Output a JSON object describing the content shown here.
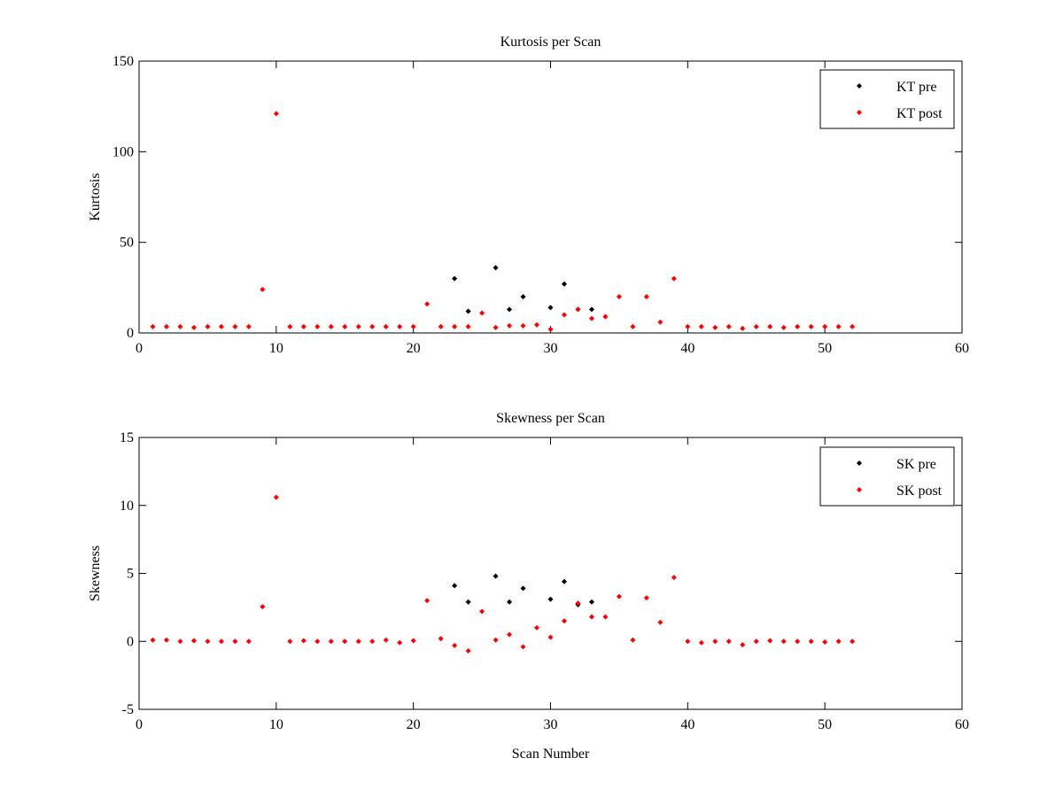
{
  "chart_data": [
    {
      "type": "scatter",
      "title": "Kurtosis per Scan",
      "xlabel": "",
      "ylabel": "Kurtosis",
      "xlim": [
        0,
        60
      ],
      "ylim": [
        0,
        150
      ],
      "xticks": [
        0,
        10,
        20,
        30,
        40,
        50,
        60
      ],
      "yticks": [
        0,
        50,
        100,
        150
      ],
      "grid": false,
      "legend_position": "top-right",
      "series": [
        {
          "name": "KT pre",
          "color": "#000000",
          "x": [
            23,
            24,
            26,
            27,
            28,
            30,
            31,
            32,
            33
          ],
          "y": [
            30,
            12,
            36,
            13,
            20,
            14,
            27,
            13,
            13
          ]
        },
        {
          "name": "KT post",
          "color": "#ff0000",
          "x": [
            1,
            2,
            3,
            4,
            5,
            6,
            7,
            8,
            9,
            10,
            11,
            12,
            13,
            14,
            15,
            16,
            17,
            18,
            19,
            20,
            21,
            22,
            23,
            24,
            25,
            26,
            27,
            28,
            29,
            30,
            31,
            32,
            33,
            34,
            35,
            36,
            37,
            38,
            39,
            40,
            41,
            42,
            43,
            44,
            45,
            46,
            47,
            48,
            49,
            50,
            51,
            52
          ],
          "y": [
            3.5,
            3.5,
            3.5,
            3,
            3.5,
            3.5,
            3.5,
            3.5,
            24,
            121,
            3.5,
            3.5,
            3.5,
            3.5,
            3.5,
            3.5,
            3.5,
            3.5,
            3.5,
            3.5,
            16,
            3.5,
            3.5,
            3.5,
            11,
            3,
            4,
            4,
            4.5,
            2,
            10,
            13,
            8,
            9,
            20,
            3.5,
            20,
            6,
            30,
            3.5,
            3.5,
            3,
            3.5,
            2.5,
            3.5,
            3.5,
            3,
            3.5,
            3.5,
            3.5,
            3.5,
            3.5
          ]
        }
      ]
    },
    {
      "type": "scatter",
      "title": "Skewness per Scan",
      "xlabel": "Scan Number",
      "ylabel": "Skewness",
      "xlim": [
        0,
        60
      ],
      "ylim": [
        -5,
        15
      ],
      "xticks": [
        0,
        10,
        20,
        30,
        40,
        50,
        60
      ],
      "yticks": [
        -5,
        0,
        5,
        10,
        15
      ],
      "grid": false,
      "legend_position": "top-right",
      "series": [
        {
          "name": "SK pre",
          "color": "#000000",
          "x": [
            23,
            24,
            26,
            27,
            28,
            30,
            31,
            32,
            33
          ],
          "y": [
            4.1,
            2.9,
            4.8,
            2.9,
            3.9,
            3.1,
            4.4,
            2.7,
            2.9
          ]
        },
        {
          "name": "SK post",
          "color": "#ff0000",
          "x": [
            1,
            2,
            3,
            4,
            5,
            6,
            7,
            8,
            9,
            10,
            11,
            12,
            13,
            14,
            15,
            16,
            17,
            18,
            19,
            20,
            21,
            22,
            23,
            24,
            25,
            26,
            27,
            28,
            29,
            30,
            31,
            32,
            33,
            34,
            35,
            36,
            37,
            38,
            39,
            40,
            41,
            42,
            43,
            44,
            45,
            46,
            47,
            48,
            49,
            50,
            51,
            52
          ],
          "y": [
            0.1,
            0.1,
            0,
            0.05,
            0,
            0,
            0,
            0,
            2.55,
            10.6,
            0,
            0.05,
            0,
            0,
            0,
            0,
            0,
            0.1,
            -0.1,
            0.05,
            3,
            0.2,
            -0.3,
            -0.7,
            2.2,
            0.1,
            0.5,
            -0.4,
            1,
            0.3,
            1.5,
            2.8,
            1.8,
            1.8,
            3.3,
            0.1,
            3.2,
            1.4,
            4.7,
            0,
            -0.1,
            0,
            0,
            -0.25,
            0,
            0.05,
            0,
            0,
            0,
            -0.05,
            0,
            0
          ]
        }
      ]
    }
  ]
}
